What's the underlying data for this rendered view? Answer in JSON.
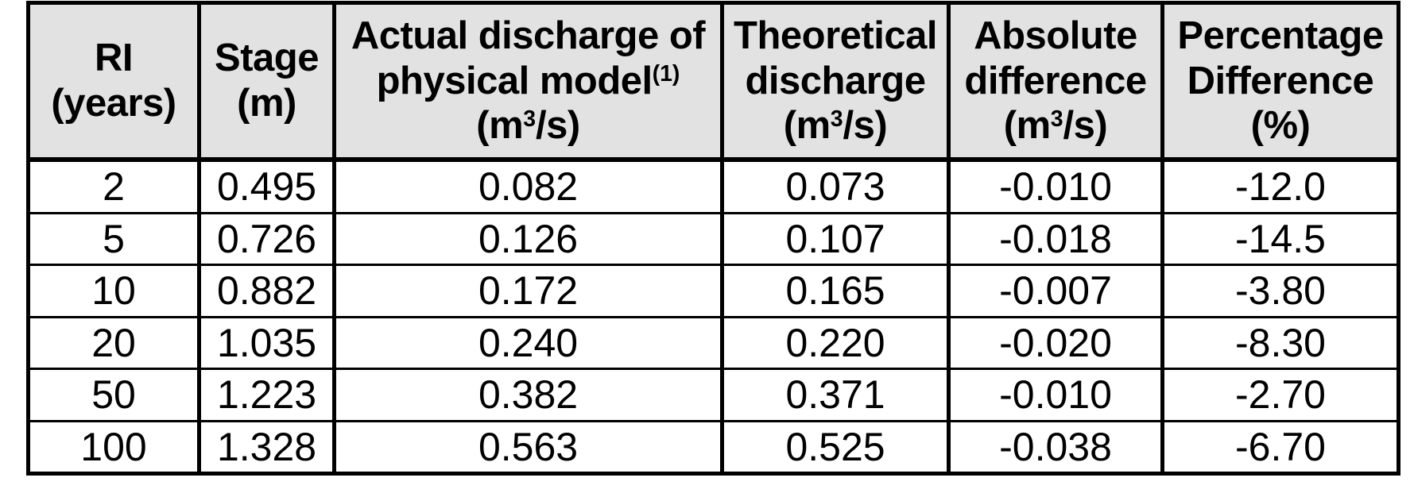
{
  "colors": {
    "header_bg": "#e2e2e2",
    "border": "#000000",
    "text": "#000000",
    "row_bg": "#ffffff"
  },
  "table": {
    "headers": [
      {
        "id": "ri",
        "lines": [
          [
            {
              "t": "RI"
            }
          ],
          [
            {
              "t": "(years)"
            }
          ]
        ]
      },
      {
        "id": "stage",
        "lines": [
          [
            {
              "t": "Stage"
            }
          ],
          [
            {
              "t": "(m)"
            }
          ]
        ]
      },
      {
        "id": "actual-discharge",
        "lines": [
          [
            {
              "t": "Actual discharge of"
            }
          ],
          [
            {
              "t": "physical model"
            },
            {
              "t": "(1)",
              "sup": true
            }
          ],
          [
            {
              "t": "(m"
            },
            {
              "t": "3",
              "sup": true
            },
            {
              "t": "/s)"
            }
          ]
        ]
      },
      {
        "id": "theoretical-discharge",
        "lines": [
          [
            {
              "t": "Theoretical"
            }
          ],
          [
            {
              "t": "discharge"
            }
          ],
          [
            {
              "t": "(m"
            },
            {
              "t": "3",
              "sup": true
            },
            {
              "t": "/s)"
            }
          ]
        ]
      },
      {
        "id": "absolute-difference",
        "lines": [
          [
            {
              "t": "Absolute"
            }
          ],
          [
            {
              "t": "difference"
            }
          ],
          [
            {
              "t": "(m"
            },
            {
              "t": "3",
              "sup": true
            },
            {
              "t": "/s)"
            }
          ]
        ]
      },
      {
        "id": "percentage-difference",
        "lines": [
          [
            {
              "t": "Percentage"
            }
          ],
          [
            {
              "t": "Difference"
            }
          ],
          [
            {
              "t": "(%)"
            }
          ]
        ]
      }
    ],
    "rows": [
      [
        "2",
        "0.495",
        "0.082",
        "0.073",
        "-0.010",
        "-12.0"
      ],
      [
        "5",
        "0.726",
        "0.126",
        "0.107",
        "-0.018",
        "-14.5"
      ],
      [
        "10",
        "0.882",
        "0.172",
        "0.165",
        "-0.007",
        "-3.80"
      ],
      [
        "20",
        "1.035",
        "0.240",
        "0.220",
        "-0.020",
        "-8.30"
      ],
      [
        "50",
        "1.223",
        "0.382",
        "0.371",
        "-0.010",
        "-2.70"
      ],
      [
        "100",
        "1.328",
        "0.563",
        "0.525",
        "-0.038",
        "-6.70"
      ]
    ]
  },
  "chart_data": {
    "type": "table",
    "columns": [
      "RI (years)",
      "Stage (m)",
      "Actual discharge of physical model(1) (m3/s)",
      "Theoretical discharge (m3/s)",
      "Absolute difference (m3/s)",
      "Percentage Difference (%)"
    ],
    "rows": [
      [
        2,
        0.495,
        0.082,
        0.073,
        -0.01,
        -12.0
      ],
      [
        5,
        0.726,
        0.126,
        0.107,
        -0.018,
        -14.5
      ],
      [
        10,
        0.882,
        0.172,
        0.165,
        -0.007,
        -3.8
      ],
      [
        20,
        1.035,
        0.24,
        0.22,
        -0.02,
        -8.3
      ],
      [
        50,
        1.223,
        0.382,
        0.371,
        -0.01,
        -2.7
      ],
      [
        100,
        1.328,
        0.563,
        0.525,
        -0.038,
        -6.7
      ]
    ]
  }
}
